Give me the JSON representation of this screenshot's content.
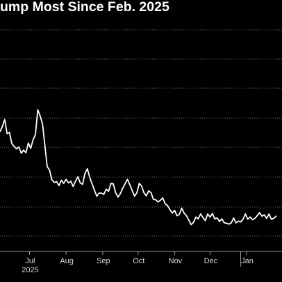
{
  "chart_data": {
    "type": "line",
    "title": "ump Most Since Feb. 2025",
    "xlabel": "",
    "ylabel": "",
    "x_range": [
      "2025-06-06",
      "2026-01-31"
    ],
    "x_ticks": [
      {
        "date": "2025-07-01",
        "label": "Jul"
      },
      {
        "date": "2025-08-01",
        "label": "Aug"
      },
      {
        "date": "2025-09-01",
        "label": "Sep"
      },
      {
        "date": "2025-10-01",
        "label": "Oct"
      },
      {
        "date": "2025-11-01",
        "label": "Nov"
      },
      {
        "date": "2025-12-01",
        "label": "Dec"
      },
      {
        "date": "2026-01-01",
        "label": "Jan"
      }
    ],
    "year_label": {
      "date": "2025-07-01",
      "label": "2025"
    },
    "year_divider_date": "2025-12-27",
    "grid": "horizontal dotted",
    "series": [
      {
        "color": "#ffffff",
        "points": [
          [
            "2025-06-06",
            45.1
          ],
          [
            "2025-06-08",
            46.2
          ],
          [
            "2025-06-10",
            47.8
          ],
          [
            "2025-06-12",
            44.6
          ],
          [
            "2025-06-14",
            44.9
          ],
          [
            "2025-06-16",
            42.4
          ],
          [
            "2025-06-18",
            41.7
          ],
          [
            "2025-06-20",
            41.2
          ],
          [
            "2025-06-22",
            41.6
          ],
          [
            "2025-06-24",
            40.2
          ],
          [
            "2025-06-26",
            40.9
          ],
          [
            "2025-06-28",
            40.3
          ],
          [
            "2025-06-30",
            42.5
          ],
          [
            "2025-07-02",
            41.3
          ],
          [
            "2025-07-04",
            43.2
          ],
          [
            "2025-07-06",
            44.4
          ],
          [
            "2025-07-08",
            50.0
          ],
          [
            "2025-07-10",
            48.6
          ],
          [
            "2025-07-12",
            46.8
          ],
          [
            "2025-07-14",
            42.0
          ],
          [
            "2025-07-16",
            37.2
          ],
          [
            "2025-07-18",
            36.4
          ],
          [
            "2025-07-20",
            34.2
          ],
          [
            "2025-07-22",
            33.6
          ],
          [
            "2025-07-24",
            33.8
          ],
          [
            "2025-07-26",
            32.9
          ],
          [
            "2025-07-28",
            34.1
          ],
          [
            "2025-07-30",
            33.4
          ],
          [
            "2025-08-01",
            34.3
          ],
          [
            "2025-08-03",
            33.5
          ],
          [
            "2025-08-05",
            33.9
          ],
          [
            "2025-08-07",
            32.7
          ],
          [
            "2025-08-09",
            33.9
          ],
          [
            "2025-08-11",
            34.9
          ],
          [
            "2025-08-13",
            33.5
          ],
          [
            "2025-08-15",
            33.2
          ],
          [
            "2025-08-17",
            35.6
          ],
          [
            "2025-08-19",
            36.7
          ],
          [
            "2025-08-21",
            34.8
          ],
          [
            "2025-08-23",
            33.3
          ],
          [
            "2025-08-25",
            31.9
          ],
          [
            "2025-08-27",
            30.5
          ],
          [
            "2025-08-29",
            31.2
          ],
          [
            "2025-08-31",
            31.2
          ],
          [
            "2025-09-02",
            30.9
          ],
          [
            "2025-09-04",
            32.1
          ],
          [
            "2025-09-06",
            31.6
          ],
          [
            "2025-09-08",
            33.4
          ],
          [
            "2025-09-10",
            33.3
          ],
          [
            "2025-09-12",
            31.3
          ],
          [
            "2025-09-14",
            30.3
          ],
          [
            "2025-09-16",
            31.1
          ],
          [
            "2025-09-18",
            32.3
          ],
          [
            "2025-09-20",
            33.3
          ],
          [
            "2025-09-22",
            34.3
          ],
          [
            "2025-09-24",
            33.1
          ],
          [
            "2025-09-26",
            31.8
          ],
          [
            "2025-09-28",
            30.5
          ],
          [
            "2025-09-30",
            31.3
          ],
          [
            "2025-10-02",
            33.4
          ],
          [
            "2025-10-04",
            32.8
          ],
          [
            "2025-10-06",
            31.3
          ],
          [
            "2025-10-08",
            30.6
          ],
          [
            "2025-10-10",
            31.7
          ],
          [
            "2025-10-12",
            31.3
          ],
          [
            "2025-10-14",
            29.8
          ],
          [
            "2025-10-16",
            29.7
          ],
          [
            "2025-10-18",
            29.2
          ],
          [
            "2025-10-20",
            29.6
          ],
          [
            "2025-10-22",
            30.1
          ],
          [
            "2025-10-24",
            28.8
          ],
          [
            "2025-10-26",
            28.4
          ],
          [
            "2025-10-28",
            27.5
          ],
          [
            "2025-10-30",
            26.7
          ],
          [
            "2025-11-01",
            27.3
          ],
          [
            "2025-11-03",
            26.1
          ],
          [
            "2025-11-05",
            26.4
          ],
          [
            "2025-11-07",
            27.8
          ],
          [
            "2025-11-09",
            26.7
          ],
          [
            "2025-11-11",
            26.1
          ],
          [
            "2025-11-13",
            25.1
          ],
          [
            "2025-11-15",
            24.1
          ],
          [
            "2025-11-17",
            24.6
          ],
          [
            "2025-11-19",
            25.8
          ],
          [
            "2025-11-21",
            25.4
          ],
          [
            "2025-11-23",
            26.5
          ],
          [
            "2025-11-25",
            25.7
          ],
          [
            "2025-11-27",
            25.0
          ],
          [
            "2025-11-29",
            26.5
          ],
          [
            "2025-12-01",
            25.8
          ],
          [
            "2025-12-03",
            26.6
          ],
          [
            "2025-12-05",
            25.4
          ],
          [
            "2025-12-07",
            25.6
          ],
          [
            "2025-12-09",
            24.8
          ],
          [
            "2025-12-11",
            25.4
          ],
          [
            "2025-12-13",
            24.5
          ],
          [
            "2025-12-15",
            24.4
          ],
          [
            "2025-12-17",
            24.2
          ],
          [
            "2025-12-19",
            24.5
          ],
          [
            "2025-12-21",
            25.6
          ],
          [
            "2025-12-23",
            24.5
          ],
          [
            "2025-12-25",
            24.9
          ],
          [
            "2025-12-27",
            24.7
          ],
          [
            "2025-12-29",
            25.3
          ],
          [
            "2025-12-31",
            26.5
          ],
          [
            "2026-01-02",
            25.3
          ],
          [
            "2026-01-04",
            25.8
          ],
          [
            "2026-01-06",
            25.2
          ],
          [
            "2026-01-08",
            25.5
          ],
          [
            "2026-01-10",
            26.1
          ],
          [
            "2026-01-12",
            26.8
          ],
          [
            "2026-01-14",
            26.0
          ],
          [
            "2026-01-16",
            26.3
          ],
          [
            "2026-01-18",
            25.5
          ],
          [
            "2026-01-20",
            26.5
          ],
          [
            "2026-01-22",
            25.3
          ],
          [
            "2026-01-24",
            25.5
          ],
          [
            "2026-01-26",
            26.0
          ]
        ]
      }
    ]
  }
}
